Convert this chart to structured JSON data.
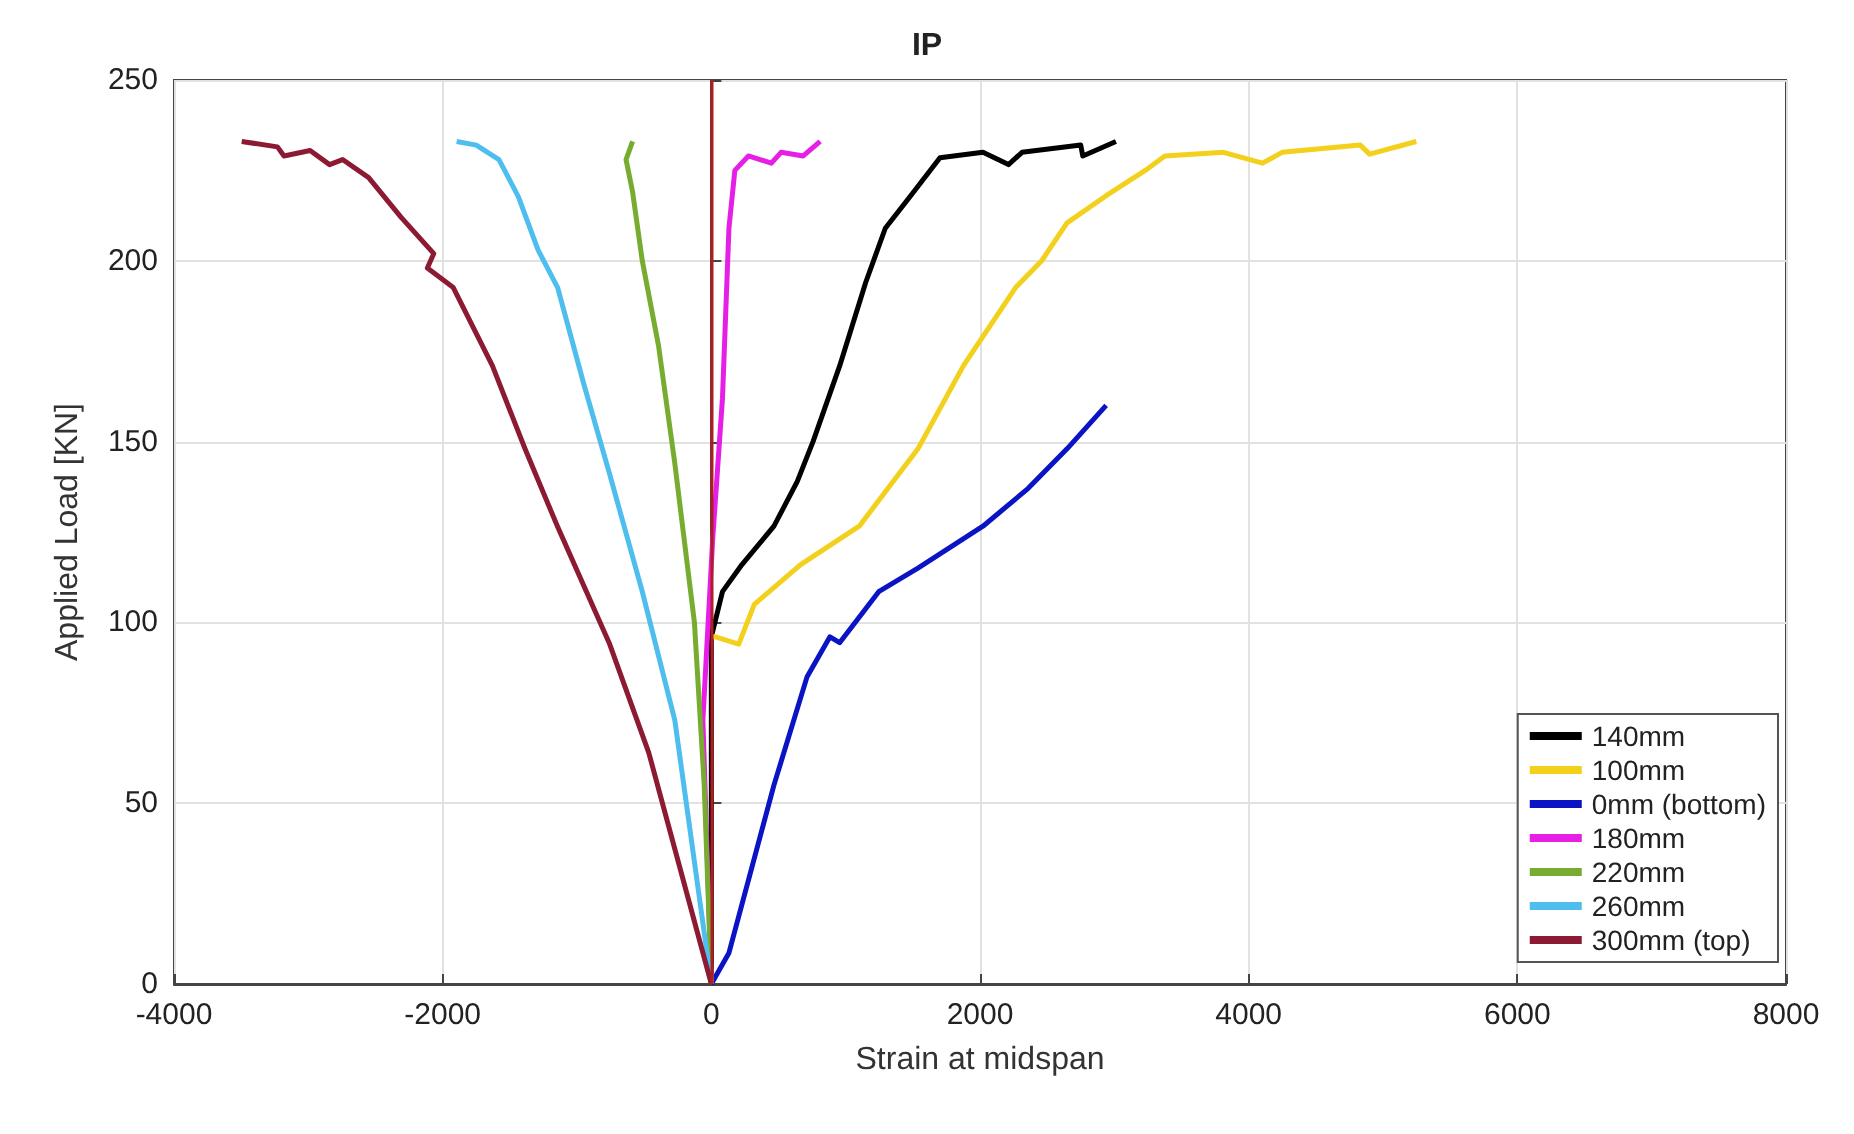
{
  "chart_data": {
    "type": "line",
    "title": "IP",
    "xlabel": "Strain at midspan",
    "ylabel": "Applied Load [KN]",
    "xlim": [
      -4000,
      8000
    ],
    "xticks": [
      -4000,
      -2000,
      0,
      2000,
      4000,
      6000,
      8000
    ],
    "ylim": [
      0,
      250
    ],
    "yticks": [
      0,
      50,
      100,
      150,
      200,
      250
    ],
    "grid": true,
    "legend": "bottom right",
    "marker": "none",
    "line_style": "solid",
    "ref_lines": [
      {
        "axis": "x",
        "value": 0,
        "color": "#b01e23"
      }
    ],
    "series": [
      {
        "name": "140mm",
        "color": "#000000",
        "x": [
          0,
          0,
          83,
          228,
          466,
          640,
          757,
          956,
          1149,
          1295,
          1484,
          1702,
          2022,
          2212,
          2313,
          2750,
          2765,
          3012
        ],
        "values": [
          0,
          96,
          108.5,
          116,
          126.6,
          139,
          150,
          171,
          194,
          209,
          218,
          228.5,
          230,
          226.6,
          230,
          232,
          229,
          233
        ]
      },
      {
        "name": "100mm",
        "color": "#f2d01c",
        "x": [
          0,
          30,
          204,
          320,
          665,
          1101,
          1538,
          1877,
          2265,
          2459,
          2648,
          2939,
          3230,
          3376,
          3812,
          4103,
          4249,
          4831,
          4900,
          5248
        ],
        "values": [
          96,
          96,
          94,
          105,
          116,
          126.6,
          148,
          171,
          192.6,
          200,
          210.5,
          218,
          225,
          229,
          230,
          227,
          230,
          232,
          229.5,
          233
        ]
      },
      {
        "name": "0mm (bottom)",
        "color": "#0a14c4",
        "x": [
          0,
          131,
          466,
          713,
          883,
          955,
          1246,
          1538,
          2022,
          2357,
          2648,
          2939
        ],
        "values": [
          0,
          8.6,
          55,
          85,
          96,
          94.4,
          108.5,
          115,
          126.6,
          137,
          148,
          160
        ]
      },
      {
        "name": "180mm",
        "color": "#e61ee6",
        "x": [
          0,
          -63,
          10,
          83,
          131,
          175,
          276,
          447,
          519,
          684,
          810
        ],
        "values": [
          0,
          73,
          123,
          162,
          209,
          225,
          229,
          227,
          230,
          229,
          233
        ]
      },
      {
        "name": "220mm",
        "color": "#77ac30",
        "x": [
          0,
          -53,
          -126,
          -272,
          -393,
          -514,
          -586,
          -635,
          -586
        ],
        "values": [
          0,
          55,
          100,
          144,
          176.5,
          200,
          219,
          228,
          233
        ]
      },
      {
        "name": "260mm",
        "color": "#4dbeee",
        "x": [
          0,
          -272,
          -514,
          -757,
          -950,
          -1144,
          -1290,
          -1436,
          -1581,
          -1750,
          -1896
        ],
        "values": [
          0,
          73,
          108.5,
          141,
          166,
          192.6,
          203,
          217.7,
          228,
          232,
          233
        ]
      },
      {
        "name": "300mm (top)",
        "color": "#8c1a32",
        "x": [
          0,
          -466,
          -757,
          -1145,
          -1387,
          -1630,
          -1921,
          -2114,
          -2066,
          -2309,
          -2551,
          -2745,
          -2842,
          -2987,
          -3181,
          -3230,
          -3496
        ],
        "values": [
          0,
          64,
          94,
          126.5,
          148,
          171,
          192.6,
          198,
          202,
          212,
          223,
          228,
          226.6,
          230.5,
          229,
          231.5,
          233
        ]
      }
    ]
  }
}
